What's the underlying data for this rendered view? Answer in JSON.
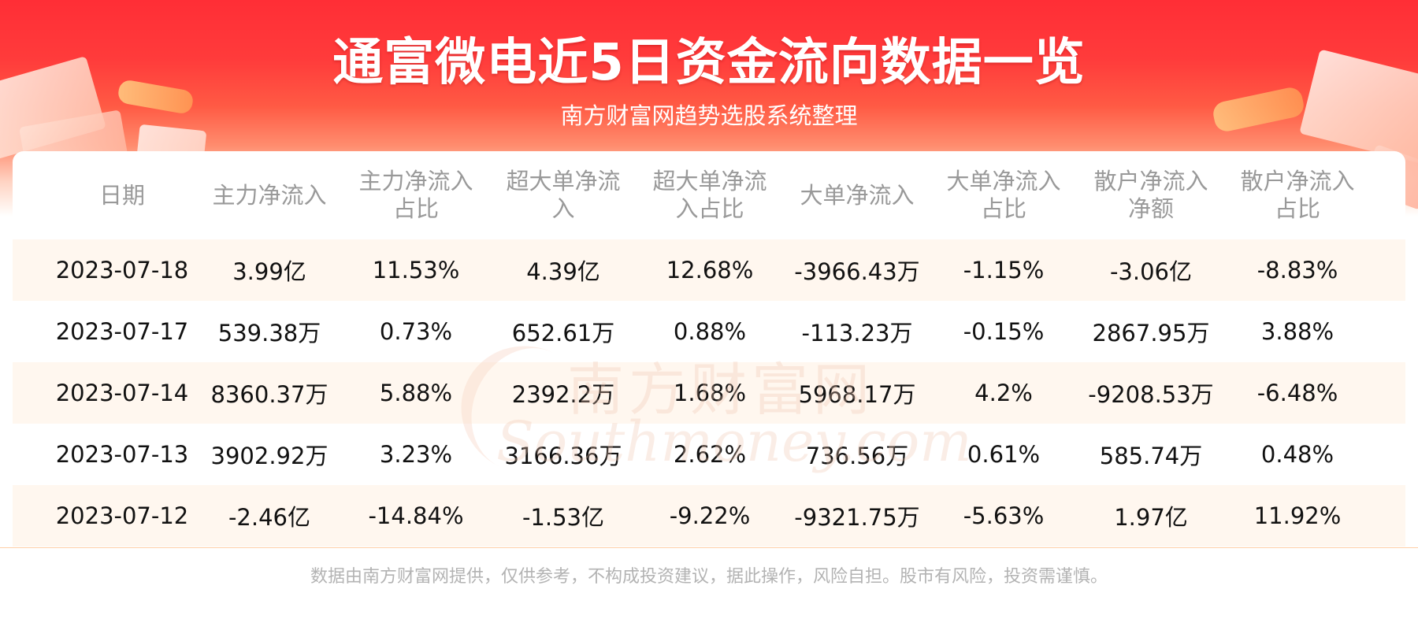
{
  "title": "通富微电近5日资金流向数据一览",
  "subtitle": "南方财富网趋势选股系统整理",
  "footer": "数据由南方财富网提供，仅供参考，不构成投资建议，据此操作，风险自担。股市有风险，投资需谨慎。",
  "watermark": {
    "cn": "南方财富网",
    "en": "Southmoney.com"
  },
  "colors": {
    "banner": "#ff3b3b",
    "shaded_row": "#fff7ef",
    "header_text": "#999999",
    "body_text": "#111111"
  },
  "chart_data": {
    "type": "table",
    "columns": [
      {
        "line1": "日期",
        "line2": ""
      },
      {
        "line1": "主力净流入",
        "line2": ""
      },
      {
        "line1": "主力净流入",
        "line2": "占比"
      },
      {
        "line1": "超大单净流",
        "line2": "入"
      },
      {
        "line1": "超大单净流",
        "line2": "入占比"
      },
      {
        "line1": "大单净流入",
        "line2": ""
      },
      {
        "line1": "大单净流入",
        "line2": "占比"
      },
      {
        "line1": "散户净流入",
        "line2": "净额"
      },
      {
        "line1": "散户净流入",
        "line2": "占比"
      }
    ],
    "rows": [
      [
        "2023-07-18",
        "3.99亿",
        "11.53%",
        "4.39亿",
        "12.68%",
        "-3966.43万",
        "-1.15%",
        "-3.06亿",
        "-8.83%"
      ],
      [
        "2023-07-17",
        "539.38万",
        "0.73%",
        "652.61万",
        "0.88%",
        "-113.23万",
        "-0.15%",
        "2867.95万",
        "3.88%"
      ],
      [
        "2023-07-14",
        "8360.37万",
        "5.88%",
        "2392.2万",
        "1.68%",
        "5968.17万",
        "4.2%",
        "-9208.53万",
        "-6.48%"
      ],
      [
        "2023-07-13",
        "3902.92万",
        "3.23%",
        "3166.36万",
        "2.62%",
        "736.56万",
        "0.61%",
        "585.74万",
        "0.48%"
      ],
      [
        "2023-07-12",
        "-2.46亿",
        "-14.84%",
        "-1.53亿",
        "-9.22%",
        "-9321.75万",
        "-5.63%",
        "1.97亿",
        "11.92%"
      ]
    ]
  }
}
